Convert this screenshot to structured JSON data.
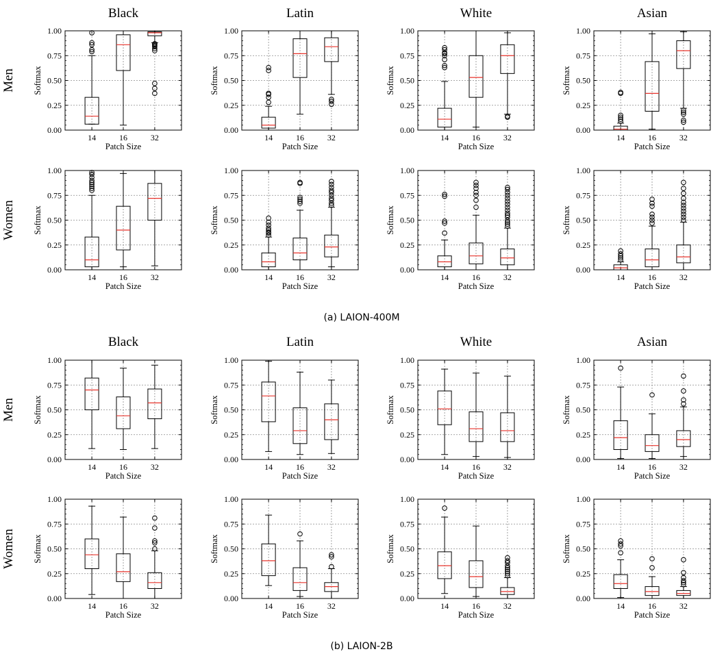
{
  "chart_data": {
    "type": "boxplot",
    "sections": [
      {
        "caption": "(a) LAION-400M",
        "columns": [
          "Black",
          "Latin",
          "White",
          "Asian"
        ],
        "rows": [
          "Men",
          "Women"
        ],
        "panels": [
          [
            {
              "boxes": [
                {
                  "min": 0.06,
                  "q1": 0.06,
                  "med": 0.14,
                  "q3": 0.33,
                  "max": 0.75,
                  "fliers": [
                    0.79,
                    0.81,
                    0.86,
                    0.88,
                    0.98
                  ]
                },
                {
                  "min": 0.05,
                  "q1": 0.6,
                  "med": 0.86,
                  "q3": 0.96,
                  "max": 1.0,
                  "fliers": []
                },
                {
                  "min": 0.88,
                  "q1": 0.95,
                  "med": 0.98,
                  "q3": 0.99,
                  "max": 1.0,
                  "fliers": [
                    0.37,
                    0.42,
                    0.47,
                    0.8,
                    0.82,
                    0.84,
                    0.85,
                    0.86,
                    0.87
                  ]
                }
              ]
            },
            {
              "boxes": [
                {
                  "min": 0.0,
                  "q1": 0.02,
                  "med": 0.05,
                  "q3": 0.13,
                  "max": 0.24,
                  "fliers": [
                    0.28,
                    0.33,
                    0.36,
                    0.37,
                    0.6,
                    0.63
                  ]
                },
                {
                  "min": 0.16,
                  "q1": 0.53,
                  "med": 0.77,
                  "q3": 0.92,
                  "max": 1.0,
                  "fliers": []
                },
                {
                  "min": 0.36,
                  "q1": 0.69,
                  "med": 0.84,
                  "q3": 0.93,
                  "max": 1.0,
                  "fliers": [
                    0.26,
                    0.29,
                    0.31
                  ]
                }
              ]
            },
            {
              "boxes": [
                {
                  "min": 0.0,
                  "q1": 0.03,
                  "med": 0.11,
                  "q3": 0.22,
                  "max": 0.49,
                  "fliers": [
                    0.63,
                    0.65,
                    0.71,
                    0.75,
                    0.77,
                    0.78,
                    0.81,
                    0.83
                  ]
                },
                {
                  "min": 0.03,
                  "q1": 0.33,
                  "med": 0.53,
                  "q3": 0.75,
                  "max": 1.0,
                  "fliers": []
                },
                {
                  "min": 0.16,
                  "q1": 0.57,
                  "med": 0.75,
                  "q3": 0.86,
                  "max": 0.98,
                  "fliers": [
                    0.13,
                    0.14
                  ]
                }
              ]
            },
            {
              "boxes": [
                {
                  "min": 0.0,
                  "q1": 0.0,
                  "med": 0.01,
                  "q3": 0.04,
                  "max": 0.07,
                  "fliers": [
                    0.09,
                    0.11,
                    0.13,
                    0.15,
                    0.37,
                    0.38
                  ]
                },
                {
                  "min": 0.01,
                  "q1": 0.19,
                  "med": 0.37,
                  "q3": 0.69,
                  "max": 0.97,
                  "fliers": []
                },
                {
                  "min": 0.22,
                  "q1": 0.62,
                  "med": 0.8,
                  "q3": 0.9,
                  "max": 0.99,
                  "fliers": [
                    0.08,
                    0.1,
                    0.16,
                    0.18,
                    0.2
                  ]
                }
              ]
            }
          ],
          [
            {
              "boxes": [
                {
                  "min": 0.0,
                  "q1": 0.03,
                  "med": 0.1,
                  "q3": 0.33,
                  "max": 0.75,
                  "fliers": [
                    0.8,
                    0.82,
                    0.84,
                    0.86,
                    0.88,
                    0.9,
                    0.93,
                    0.96,
                    0.98
                  ]
                },
                {
                  "min": 0.03,
                  "q1": 0.2,
                  "med": 0.4,
                  "q3": 0.64,
                  "max": 0.97,
                  "fliers": []
                },
                {
                  "min": 0.04,
                  "q1": 0.5,
                  "med": 0.72,
                  "q3": 0.87,
                  "max": 1.0,
                  "fliers": []
                }
              ]
            },
            {
              "boxes": [
                {
                  "min": 0.0,
                  "q1": 0.03,
                  "med": 0.08,
                  "q3": 0.17,
                  "max": 0.33,
                  "fliers": [
                    0.35,
                    0.37,
                    0.38,
                    0.4,
                    0.42,
                    0.45,
                    0.48,
                    0.52
                  ]
                },
                {
                  "min": 0.0,
                  "q1": 0.1,
                  "med": 0.17,
                  "q3": 0.32,
                  "max": 0.6,
                  "fliers": [
                    0.67,
                    0.69,
                    0.71,
                    0.73,
                    0.87,
                    0.88
                  ]
                },
                {
                  "min": 0.03,
                  "q1": 0.13,
                  "med": 0.23,
                  "q3": 0.35,
                  "max": 0.63,
                  "fliers": [
                    0.65,
                    0.67,
                    0.7,
                    0.72,
                    0.75,
                    0.78,
                    0.8,
                    0.83,
                    0.86,
                    0.89
                  ]
                }
              ]
            },
            {
              "boxes": [
                {
                  "min": 0.0,
                  "q1": 0.03,
                  "med": 0.08,
                  "q3": 0.14,
                  "max": 0.3,
                  "fliers": [
                    0.37,
                    0.47,
                    0.49,
                    0.74,
                    0.76
                  ]
                },
                {
                  "min": 0.0,
                  "q1": 0.06,
                  "med": 0.14,
                  "q3": 0.27,
                  "max": 0.55,
                  "fliers": [
                    0.63,
                    0.7,
                    0.75,
                    0.78,
                    0.82,
                    0.85,
                    0.88
                  ]
                },
                {
                  "min": 0.0,
                  "q1": 0.05,
                  "med": 0.12,
                  "q3": 0.21,
                  "max": 0.42,
                  "fliers": [
                    0.44,
                    0.46,
                    0.48,
                    0.5,
                    0.53,
                    0.55,
                    0.57,
                    0.6,
                    0.63,
                    0.66,
                    0.69,
                    0.72,
                    0.75,
                    0.78,
                    0.81,
                    0.83
                  ]
                }
              ]
            },
            {
              "boxes": [
                {
                  "min": 0.0,
                  "q1": 0.0,
                  "med": 0.02,
                  "q3": 0.05,
                  "max": 0.08,
                  "fliers": [
                    0.1,
                    0.12,
                    0.14,
                    0.16,
                    0.19
                  ]
                },
                {
                  "min": 0.0,
                  "q1": 0.03,
                  "med": 0.1,
                  "q3": 0.21,
                  "max": 0.44,
                  "fliers": [
                    0.47,
                    0.5,
                    0.53,
                    0.56,
                    0.64,
                    0.67,
                    0.71
                  ]
                },
                {
                  "min": 0.0,
                  "q1": 0.07,
                  "med": 0.13,
                  "q3": 0.25,
                  "max": 0.48,
                  "fliers": [
                    0.5,
                    0.53,
                    0.56,
                    0.59,
                    0.62,
                    0.65,
                    0.68,
                    0.72,
                    0.77,
                    0.82,
                    0.88
                  ]
                }
              ]
            }
          ]
        ]
      },
      {
        "caption": "(b) LAION-2B",
        "columns": [
          "Black",
          "Latin",
          "White",
          "Asian"
        ],
        "rows": [
          "Men",
          "Women"
        ],
        "panels": [
          [
            {
              "boxes": [
                {
                  "min": 0.11,
                  "q1": 0.5,
                  "med": 0.7,
                  "q3": 0.82,
                  "max": 1.0,
                  "fliers": []
                },
                {
                  "min": 0.1,
                  "q1": 0.31,
                  "med": 0.44,
                  "q3": 0.63,
                  "max": 0.92,
                  "fliers": []
                },
                {
                  "min": 0.11,
                  "q1": 0.41,
                  "med": 0.57,
                  "q3": 0.71,
                  "max": 0.95,
                  "fliers": []
                }
              ]
            },
            {
              "boxes": [
                {
                  "min": 0.08,
                  "q1": 0.38,
                  "med": 0.64,
                  "q3": 0.78,
                  "max": 0.99,
                  "fliers": []
                },
                {
                  "min": 0.05,
                  "q1": 0.16,
                  "med": 0.29,
                  "q3": 0.52,
                  "max": 0.88,
                  "fliers": []
                },
                {
                  "min": 0.06,
                  "q1": 0.2,
                  "med": 0.4,
                  "q3": 0.56,
                  "max": 0.8,
                  "fliers": []
                }
              ]
            },
            {
              "boxes": [
                {
                  "min": 0.05,
                  "q1": 0.35,
                  "med": 0.51,
                  "q3": 0.69,
                  "max": 0.91,
                  "fliers": []
                },
                {
                  "min": 0.03,
                  "q1": 0.18,
                  "med": 0.31,
                  "q3": 0.48,
                  "max": 0.87,
                  "fliers": []
                },
                {
                  "min": 0.02,
                  "q1": 0.18,
                  "med": 0.29,
                  "q3": 0.47,
                  "max": 0.84,
                  "fliers": []
                }
              ]
            },
            {
              "boxes": [
                {
                  "min": 0.01,
                  "q1": 0.1,
                  "med": 0.22,
                  "q3": 0.39,
                  "max": 0.73,
                  "fliers": [
                    0.92
                  ]
                },
                {
                  "min": 0.01,
                  "q1": 0.08,
                  "med": 0.14,
                  "q3": 0.25,
                  "max": 0.46,
                  "fliers": [
                    0.65
                  ]
                },
                {
                  "min": 0.03,
                  "q1": 0.13,
                  "med": 0.2,
                  "q3": 0.29,
                  "max": 0.53,
                  "fliers": [
                    0.56,
                    0.6,
                    0.69,
                    0.84
                  ]
                }
              ]
            }
          ],
          [
            {
              "boxes": [
                {
                  "min": 0.04,
                  "q1": 0.3,
                  "med": 0.44,
                  "q3": 0.6,
                  "max": 0.93,
                  "fliers": []
                },
                {
                  "min": 0.0,
                  "q1": 0.17,
                  "med": 0.27,
                  "q3": 0.45,
                  "max": 0.82,
                  "fliers": []
                },
                {
                  "min": 0.0,
                  "q1": 0.1,
                  "med": 0.16,
                  "q3": 0.26,
                  "max": 0.48,
                  "fliers": [
                    0.5,
                    0.56,
                    0.58,
                    0.71,
                    0.81
                  ]
                }
              ]
            },
            {
              "boxes": [
                {
                  "min": 0.13,
                  "q1": 0.23,
                  "med": 0.38,
                  "q3": 0.55,
                  "max": 0.84,
                  "fliers": []
                },
                {
                  "min": 0.02,
                  "q1": 0.08,
                  "med": 0.16,
                  "q3": 0.31,
                  "max": 0.58,
                  "fliers": [
                    0.65
                  ]
                },
                {
                  "min": 0.0,
                  "q1": 0.07,
                  "med": 0.12,
                  "q3": 0.16,
                  "max": 0.3,
                  "fliers": [
                    0.32,
                    0.42,
                    0.44
                  ]
                }
              ]
            },
            {
              "boxes": [
                {
                  "min": 0.05,
                  "q1": 0.2,
                  "med": 0.33,
                  "q3": 0.47,
                  "max": 0.82,
                  "fliers": [
                    0.91
                  ]
                },
                {
                  "min": 0.02,
                  "q1": 0.11,
                  "med": 0.22,
                  "q3": 0.38,
                  "max": 0.73,
                  "fliers": []
                },
                {
                  "min": 0.0,
                  "q1": 0.04,
                  "med": 0.07,
                  "q3": 0.11,
                  "max": 0.21,
                  "fliers": [
                    0.23,
                    0.25,
                    0.27,
                    0.29,
                    0.31,
                    0.33,
                    0.36,
                    0.38,
                    0.41
                  ]
                }
              ]
            },
            {
              "boxes": [
                {
                  "min": 0.01,
                  "q1": 0.1,
                  "med": 0.15,
                  "q3": 0.24,
                  "max": 0.39,
                  "fliers": [
                    0.46,
                    0.53,
                    0.55,
                    0.58
                  ]
                },
                {
                  "min": 0.0,
                  "q1": 0.03,
                  "med": 0.07,
                  "q3": 0.12,
                  "max": 0.22,
                  "fliers": [
                    0.31,
                    0.4
                  ]
                },
                {
                  "min": 0.0,
                  "q1": 0.03,
                  "med": 0.05,
                  "q3": 0.08,
                  "max": 0.12,
                  "fliers": [
                    0.14,
                    0.16,
                    0.18,
                    0.21,
                    0.26,
                    0.39
                  ]
                }
              ]
            }
          ]
        ]
      }
    ],
    "categories": [
      "14",
      "16",
      "32"
    ],
    "yticks": [
      "0.00",
      "0.25",
      "0.50",
      "0.75",
      "1.00"
    ],
    "ylim": [
      0,
      1
    ],
    "xlabel": "Patch Size",
    "ylabel": "Softmax",
    "grid": true,
    "colors": {
      "median": "#e8332b",
      "box": "#000000",
      "grid": "#8a8a8a"
    }
  }
}
